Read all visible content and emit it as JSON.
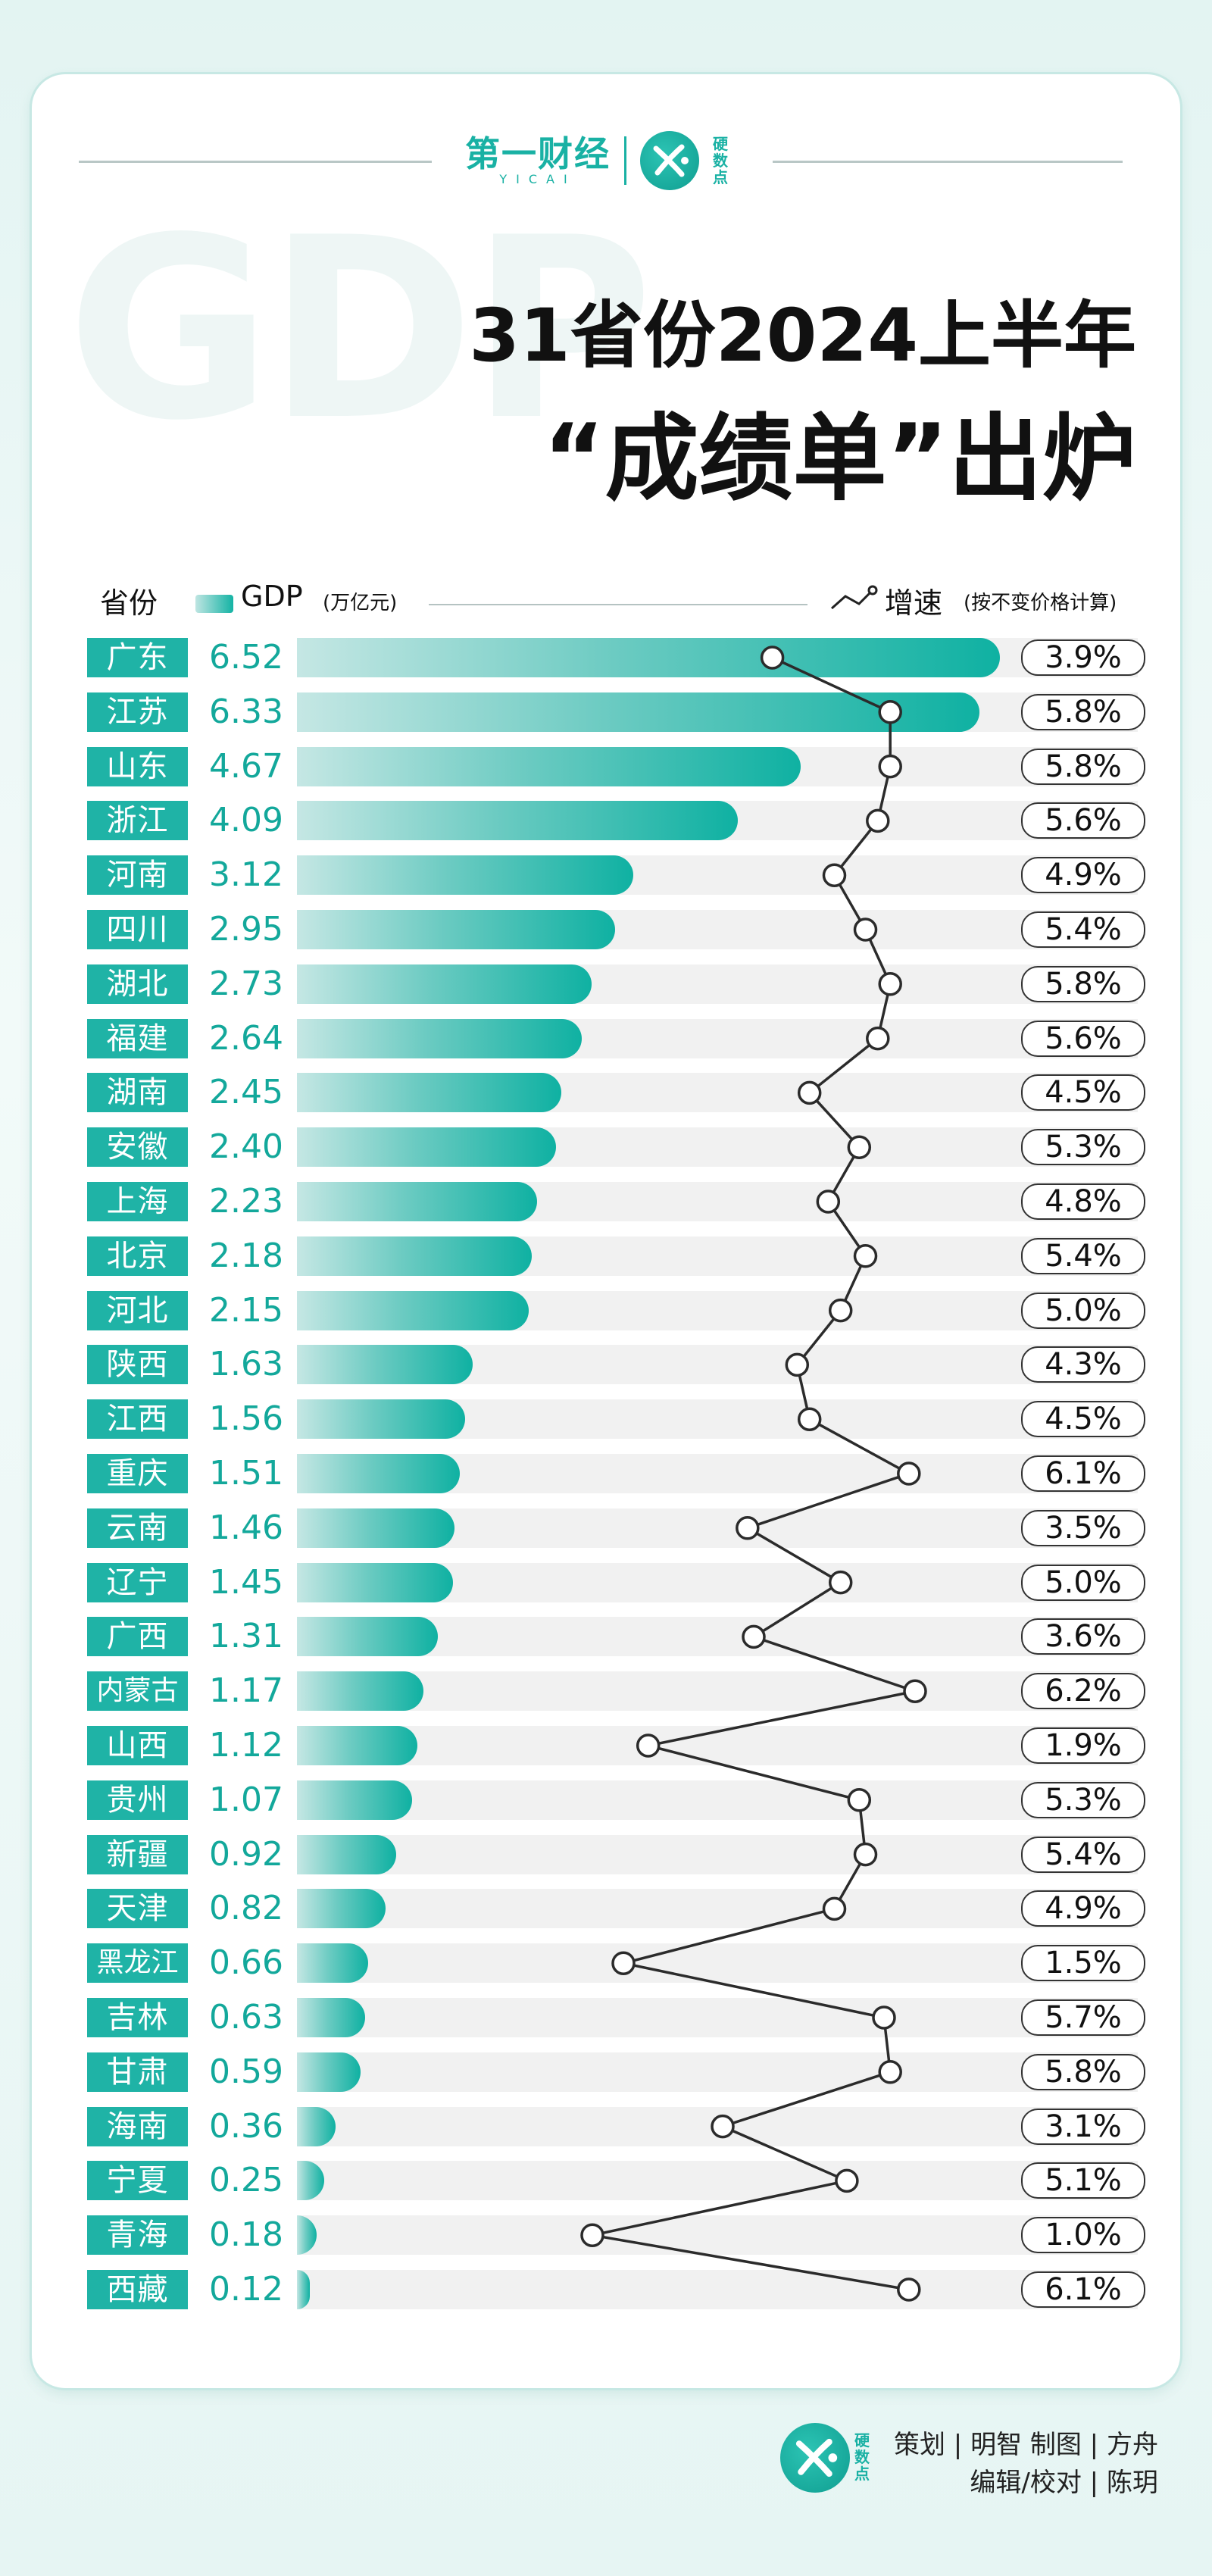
{
  "header": {
    "brand_main": "第一财经",
    "brand_sub": "YICAI",
    "logo_label": "硬数点",
    "watermark": "GDP",
    "title_line1": "31省份2024上半年",
    "title_line2": "“成绩单”出炉"
  },
  "legend": {
    "province": "省份",
    "gdp": "GDP",
    "gdp_unit": "(万亿元)",
    "growth": "增速",
    "growth_unit": "(按不变价格计算)"
  },
  "chart_data": {
    "type": "bar",
    "title": "31省份2024上半年“成绩单”出炉",
    "categories": [
      "广东",
      "江苏",
      "山东",
      "浙江",
      "河南",
      "四川",
      "湖北",
      "福建",
      "湖南",
      "安徽",
      "上海",
      "北京",
      "河北",
      "陕西",
      "江西",
      "重庆",
      "云南",
      "辽宁",
      "广西",
      "内蒙古",
      "山西",
      "贵州",
      "新疆",
      "天津",
      "黑龙江",
      "吉林",
      "甘肃",
      "海南",
      "宁夏",
      "青海",
      "西藏"
    ],
    "series": [
      {
        "name": "GDP (万亿元)",
        "values": [
          "6.52",
          "6.33",
          "4.67",
          "4.09",
          "3.12",
          "2.95",
          "2.73",
          "2.64",
          "2.45",
          "2.40",
          "2.23",
          "2.18",
          "2.15",
          "1.63",
          "1.56",
          "1.51",
          "1.46",
          "1.45",
          "1.31",
          "1.17",
          "1.12",
          "1.07",
          "0.92",
          "0.82",
          "0.66",
          "0.63",
          "0.59",
          "0.36",
          "0.25",
          "0.18",
          "0.12"
        ]
      },
      {
        "name": "增速 (按不变价格计算)",
        "values": [
          "3.9%",
          "5.8%",
          "5.8%",
          "5.6%",
          "4.9%",
          "5.4%",
          "5.8%",
          "5.6%",
          "4.5%",
          "5.3%",
          "4.8%",
          "5.4%",
          "5.0%",
          "4.3%",
          "4.5%",
          "6.1%",
          "3.5%",
          "5.0%",
          "3.6%",
          "6.2%",
          "1.9%",
          "5.3%",
          "5.4%",
          "4.9%",
          "1.5%",
          "5.7%",
          "5.8%",
          "3.1%",
          "5.1%",
          "1.0%",
          "6.1%"
        ]
      }
    ],
    "gdp_max": 6.52,
    "growth_range": [
      1.0,
      6.2
    ]
  },
  "footer": {
    "logo_label": "硬数点",
    "credit_line1": "策划 | 明智  制图 | 方舟",
    "credit_line2": "编辑/校对 | 陈玥"
  }
}
